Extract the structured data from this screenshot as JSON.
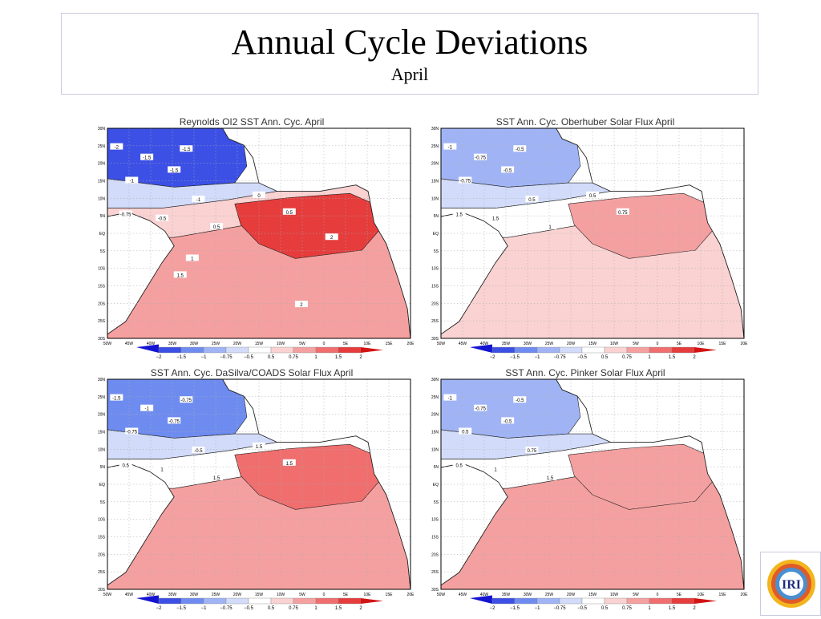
{
  "header": {
    "title": "Annual Cycle Deviations",
    "subtitle": "April"
  },
  "logo": {
    "text": "IRI",
    "icon": "iri-logo-icon"
  },
  "colorbar": {
    "labels": [
      "-2",
      "-1.5",
      "-1",
      "-0.75",
      "-0.5",
      "0.5",
      "0.75",
      "1",
      "1.5",
      "2"
    ],
    "colors": [
      "#1414d2",
      "#3c50e6",
      "#6e8cf0",
      "#a0b4f5",
      "#d2dcfa",
      "#ffffff",
      "#fad2d2",
      "#f5a0a0",
      "#f06e6e",
      "#e63c3c",
      "#d21414"
    ]
  },
  "axes": {
    "y_ticks": [
      "30N",
      "25N",
      "20N",
      "15N",
      "10N",
      "5N",
      "EQ",
      "5S",
      "10S",
      "15S",
      "20S",
      "25S",
      "30S"
    ],
    "x_ticks": [
      "50W",
      "45W",
      "40W",
      "35W",
      "30W",
      "25W",
      "20W",
      "15W",
      "10W",
      "5W",
      "0",
      "5E",
      "10E",
      "15E",
      "20E"
    ]
  },
  "chart_data": [
    {
      "type": "heatmap",
      "title": "Reynolds OI2 SST Ann. Cyc. April",
      "zones": [
        {
          "name": "north",
          "value": -1.5
        },
        {
          "name": "transition",
          "value": -0.5
        },
        {
          "name": "near_eq",
          "value": 0.75
        },
        {
          "name": "south",
          "value": 1
        },
        {
          "name": "gulf",
          "value": 2
        }
      ],
      "contour_labels": [
        "-2",
        "-1.5",
        "-1.5",
        "-1.5",
        "-1",
        "-1",
        "-0.75",
        "-0.5",
        "0.5",
        "0",
        "0.5",
        "1",
        "2",
        "1.5",
        "2"
      ]
    },
    {
      "type": "heatmap",
      "title": "SST Ann. Cyc. Oberhuber Solar Flux April",
      "zones": [
        {
          "name": "north",
          "value": -0.75
        },
        {
          "name": "transition",
          "value": -0.5
        },
        {
          "name": "near_eq",
          "value": 0.5
        },
        {
          "name": "south",
          "value": 0.75
        },
        {
          "name": "gulf",
          "value": 1
        }
      ],
      "contour_labels": [
        "-1",
        "-0.75",
        "-0.5",
        "-0.5",
        "-0.75",
        "0.5",
        "1.5",
        "1.5",
        "1",
        "0.5",
        "0.75"
      ]
    },
    {
      "type": "heatmap",
      "title": "SST Ann. Cyc. DaSilva/COADS Solar Flux April",
      "zones": [
        {
          "name": "north",
          "value": -1
        },
        {
          "name": "transition",
          "value": -0.5
        },
        {
          "name": "near_eq",
          "value": 0.5
        },
        {
          "name": "south",
          "value": 1
        },
        {
          "name": "gulf",
          "value": 1.5
        }
      ],
      "contour_labels": [
        "-1.5",
        "-1",
        "-0.75",
        "-0.75",
        "-0.75",
        "-0.5",
        "0.5",
        "1",
        "1.5",
        "1.5",
        "1.5"
      ]
    },
    {
      "type": "heatmap",
      "title": "SST Ann. Cyc. Pinker Solar Flux April",
      "zones": [
        {
          "name": "north",
          "value": -0.75
        },
        {
          "name": "transition",
          "value": -0.5
        },
        {
          "name": "near_eq",
          "value": 0.5
        },
        {
          "name": "south",
          "value": 1
        },
        {
          "name": "gulf",
          "value": 1
        }
      ],
      "contour_labels": [
        "-1",
        "-0.75",
        "-0.5",
        "-0.5",
        "0.5",
        "0.75",
        "0.5",
        "1",
        "1.5"
      ]
    }
  ]
}
